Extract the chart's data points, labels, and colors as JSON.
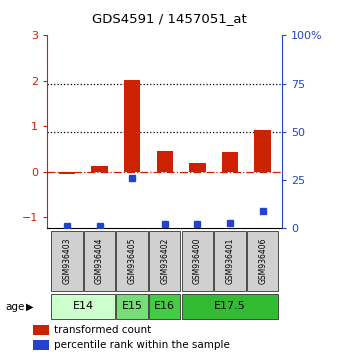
{
  "title": "GDS4591 / 1457051_at",
  "samples": [
    "GSM936403",
    "GSM936404",
    "GSM936405",
    "GSM936402",
    "GSM936400",
    "GSM936401",
    "GSM936406"
  ],
  "red_values": [
    -0.05,
    0.13,
    2.02,
    0.45,
    0.18,
    0.43,
    0.92
  ],
  "blue_raw": [
    1,
    1,
    26,
    2,
    2,
    3,
    9
  ],
  "ylim_left": [
    -1.25,
    3.0
  ],
  "ylim_right": [
    0,
    100
  ],
  "yticks_left": [
    -1,
    0,
    1,
    2,
    3
  ],
  "yticks_right": [
    0,
    25,
    50,
    75,
    100
  ],
  "red_color": "#cc2200",
  "blue_color": "#2244cc",
  "age_groups": [
    {
      "label": "E14",
      "start": 0,
      "end": 2,
      "color": "#ccffcc"
    },
    {
      "label": "E15",
      "start": 2,
      "end": 3,
      "color": "#77dd77"
    },
    {
      "label": "E16",
      "start": 3,
      "end": 4,
      "color": "#44cc44"
    },
    {
      "label": "E17.5",
      "start": 4,
      "end": 7,
      "color": "#33bb33"
    }
  ],
  "legend_red": "transformed count",
  "legend_blue": "percentile rank within the sample",
  "bar_width": 0.5,
  "age_label": "age"
}
